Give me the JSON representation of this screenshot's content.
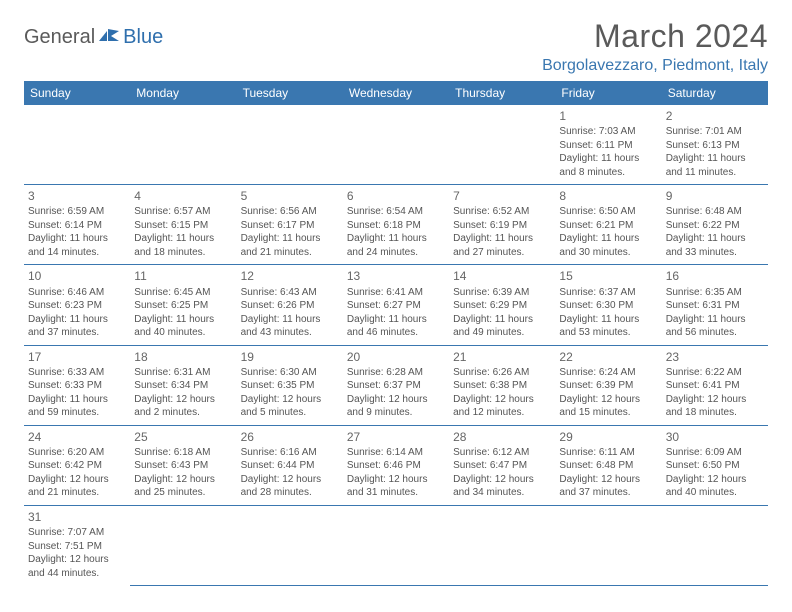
{
  "logo": {
    "part1": "General",
    "part2": "Blue"
  },
  "title": "March 2024",
  "location": "Borgolavezzaro, Piedmont, Italy",
  "colors": {
    "header_bg": "#3a77b0",
    "header_text": "#ffffff",
    "accent": "#2f6fad",
    "body_text": "#555555",
    "title_text": "#5a5a5a",
    "border": "#3a77b0",
    "background": "#ffffff"
  },
  "typography": {
    "title_fontsize": 32,
    "location_fontsize": 16,
    "header_fontsize": 12,
    "daynum_fontsize": 12,
    "cell_fontsize": 10
  },
  "weekdays": [
    "Sunday",
    "Monday",
    "Tuesday",
    "Wednesday",
    "Thursday",
    "Friday",
    "Saturday"
  ],
  "weeks": [
    [
      null,
      null,
      null,
      null,
      null,
      {
        "n": "1",
        "sr": "Sunrise: 7:03 AM",
        "ss": "Sunset: 6:11 PM",
        "d1": "Daylight: 11 hours",
        "d2": "and 8 minutes."
      },
      {
        "n": "2",
        "sr": "Sunrise: 7:01 AM",
        "ss": "Sunset: 6:13 PM",
        "d1": "Daylight: 11 hours",
        "d2": "and 11 minutes."
      }
    ],
    [
      {
        "n": "3",
        "sr": "Sunrise: 6:59 AM",
        "ss": "Sunset: 6:14 PM",
        "d1": "Daylight: 11 hours",
        "d2": "and 14 minutes."
      },
      {
        "n": "4",
        "sr": "Sunrise: 6:57 AM",
        "ss": "Sunset: 6:15 PM",
        "d1": "Daylight: 11 hours",
        "d2": "and 18 minutes."
      },
      {
        "n": "5",
        "sr": "Sunrise: 6:56 AM",
        "ss": "Sunset: 6:17 PM",
        "d1": "Daylight: 11 hours",
        "d2": "and 21 minutes."
      },
      {
        "n": "6",
        "sr": "Sunrise: 6:54 AM",
        "ss": "Sunset: 6:18 PM",
        "d1": "Daylight: 11 hours",
        "d2": "and 24 minutes."
      },
      {
        "n": "7",
        "sr": "Sunrise: 6:52 AM",
        "ss": "Sunset: 6:19 PM",
        "d1": "Daylight: 11 hours",
        "d2": "and 27 minutes."
      },
      {
        "n": "8",
        "sr": "Sunrise: 6:50 AM",
        "ss": "Sunset: 6:21 PM",
        "d1": "Daylight: 11 hours",
        "d2": "and 30 minutes."
      },
      {
        "n": "9",
        "sr": "Sunrise: 6:48 AM",
        "ss": "Sunset: 6:22 PM",
        "d1": "Daylight: 11 hours",
        "d2": "and 33 minutes."
      }
    ],
    [
      {
        "n": "10",
        "sr": "Sunrise: 6:46 AM",
        "ss": "Sunset: 6:23 PM",
        "d1": "Daylight: 11 hours",
        "d2": "and 37 minutes."
      },
      {
        "n": "11",
        "sr": "Sunrise: 6:45 AM",
        "ss": "Sunset: 6:25 PM",
        "d1": "Daylight: 11 hours",
        "d2": "and 40 minutes."
      },
      {
        "n": "12",
        "sr": "Sunrise: 6:43 AM",
        "ss": "Sunset: 6:26 PM",
        "d1": "Daylight: 11 hours",
        "d2": "and 43 minutes."
      },
      {
        "n": "13",
        "sr": "Sunrise: 6:41 AM",
        "ss": "Sunset: 6:27 PM",
        "d1": "Daylight: 11 hours",
        "d2": "and 46 minutes."
      },
      {
        "n": "14",
        "sr": "Sunrise: 6:39 AM",
        "ss": "Sunset: 6:29 PM",
        "d1": "Daylight: 11 hours",
        "d2": "and 49 minutes."
      },
      {
        "n": "15",
        "sr": "Sunrise: 6:37 AM",
        "ss": "Sunset: 6:30 PM",
        "d1": "Daylight: 11 hours",
        "d2": "and 53 minutes."
      },
      {
        "n": "16",
        "sr": "Sunrise: 6:35 AM",
        "ss": "Sunset: 6:31 PM",
        "d1": "Daylight: 11 hours",
        "d2": "and 56 minutes."
      }
    ],
    [
      {
        "n": "17",
        "sr": "Sunrise: 6:33 AM",
        "ss": "Sunset: 6:33 PM",
        "d1": "Daylight: 11 hours",
        "d2": "and 59 minutes."
      },
      {
        "n": "18",
        "sr": "Sunrise: 6:31 AM",
        "ss": "Sunset: 6:34 PM",
        "d1": "Daylight: 12 hours",
        "d2": "and 2 minutes."
      },
      {
        "n": "19",
        "sr": "Sunrise: 6:30 AM",
        "ss": "Sunset: 6:35 PM",
        "d1": "Daylight: 12 hours",
        "d2": "and 5 minutes."
      },
      {
        "n": "20",
        "sr": "Sunrise: 6:28 AM",
        "ss": "Sunset: 6:37 PM",
        "d1": "Daylight: 12 hours",
        "d2": "and 9 minutes."
      },
      {
        "n": "21",
        "sr": "Sunrise: 6:26 AM",
        "ss": "Sunset: 6:38 PM",
        "d1": "Daylight: 12 hours",
        "d2": "and 12 minutes."
      },
      {
        "n": "22",
        "sr": "Sunrise: 6:24 AM",
        "ss": "Sunset: 6:39 PM",
        "d1": "Daylight: 12 hours",
        "d2": "and 15 minutes."
      },
      {
        "n": "23",
        "sr": "Sunrise: 6:22 AM",
        "ss": "Sunset: 6:41 PM",
        "d1": "Daylight: 12 hours",
        "d2": "and 18 minutes."
      }
    ],
    [
      {
        "n": "24",
        "sr": "Sunrise: 6:20 AM",
        "ss": "Sunset: 6:42 PM",
        "d1": "Daylight: 12 hours",
        "d2": "and 21 minutes."
      },
      {
        "n": "25",
        "sr": "Sunrise: 6:18 AM",
        "ss": "Sunset: 6:43 PM",
        "d1": "Daylight: 12 hours",
        "d2": "and 25 minutes."
      },
      {
        "n": "26",
        "sr": "Sunrise: 6:16 AM",
        "ss": "Sunset: 6:44 PM",
        "d1": "Daylight: 12 hours",
        "d2": "and 28 minutes."
      },
      {
        "n": "27",
        "sr": "Sunrise: 6:14 AM",
        "ss": "Sunset: 6:46 PM",
        "d1": "Daylight: 12 hours",
        "d2": "and 31 minutes."
      },
      {
        "n": "28",
        "sr": "Sunrise: 6:12 AM",
        "ss": "Sunset: 6:47 PM",
        "d1": "Daylight: 12 hours",
        "d2": "and 34 minutes."
      },
      {
        "n": "29",
        "sr": "Sunrise: 6:11 AM",
        "ss": "Sunset: 6:48 PM",
        "d1": "Daylight: 12 hours",
        "d2": "and 37 minutes."
      },
      {
        "n": "30",
        "sr": "Sunrise: 6:09 AM",
        "ss": "Sunset: 6:50 PM",
        "d1": "Daylight: 12 hours",
        "d2": "and 40 minutes."
      }
    ],
    [
      {
        "n": "31",
        "sr": "Sunrise: 7:07 AM",
        "ss": "Sunset: 7:51 PM",
        "d1": "Daylight: 12 hours",
        "d2": "and 44 minutes."
      },
      null,
      null,
      null,
      null,
      null,
      null
    ]
  ]
}
